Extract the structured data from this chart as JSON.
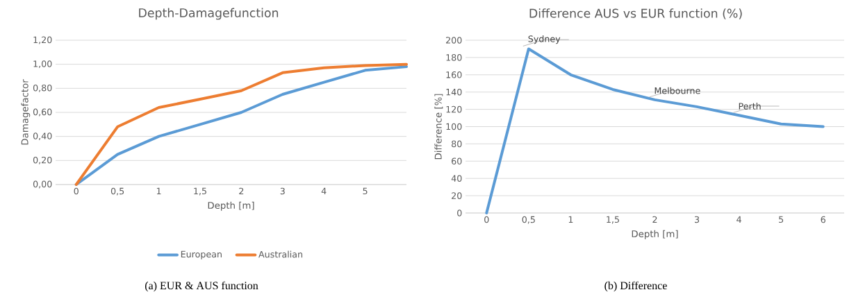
{
  "chart_data": [
    {
      "type": "line",
      "title": "Depth-Damagefunction",
      "xlabel": "Depth [m]",
      "ylabel": "Damagefactor",
      "categories": [
        "0",
        "0,5",
        "1",
        "1,5",
        "2",
        "3",
        "4",
        "5",
        null
      ],
      "series": [
        {
          "name": "European",
          "color": "#5b9bd5",
          "values": [
            0,
            0.25,
            0.4,
            0.5,
            0.6,
            0.75,
            0.85,
            0.95,
            0.98
          ]
        },
        {
          "name": "Australian",
          "color": "#ed7d31",
          "values": [
            0,
            0.48,
            0.64,
            0.71,
            0.78,
            0.93,
            0.97,
            0.99,
            1.0
          ]
        }
      ],
      "ylim": [
        0,
        1.2
      ],
      "yticks": [
        {
          "value": 0,
          "label": "0,00"
        },
        {
          "value": 0.2,
          "label": "0,20"
        },
        {
          "value": 0.4,
          "label": "0,40"
        },
        {
          "value": 0.6,
          "label": "0,60"
        },
        {
          "value": 0.8,
          "label": "0,80"
        },
        {
          "value": 1.0,
          "label": "1,00"
        },
        {
          "value": 1.2,
          "label": "1,20"
        }
      ],
      "grid": "y",
      "legend": "bottom",
      "marker": "none",
      "line_style": "solid",
      "annotations": [
        "(a) EUR & AUS function"
      ]
    },
    {
      "type": "line",
      "title": "Difference AUS vs EUR function (%)",
      "xlabel": "Depth [m]",
      "ylabel": "Difference [%]",
      "categories": [
        "0",
        "0,5",
        "1",
        "1,5",
        "2",
        "3",
        "4",
        "5",
        "6"
      ],
      "series": [
        {
          "color": "#5b9bd5",
          "values": [
            0,
            190,
            160,
            143,
            131,
            123,
            113,
            103,
            100
          ]
        }
      ],
      "ylim": [
        0,
        200
      ],
      "yticks": [
        0,
        20,
        40,
        60,
        80,
        100,
        120,
        140,
        160,
        180,
        200
      ],
      "grid": "y",
      "legend": false,
      "marker": "none",
      "line_style": "solid",
      "annotations": [
        {
          "text": "Sydney",
          "x": "0,5",
          "y": 190
        },
        {
          "text": "Melbourne",
          "x": "2",
          "y": 131
        },
        {
          "text": "Perth",
          "x": "4",
          "y": 113
        },
        "(b) Difference"
      ]
    }
  ]
}
